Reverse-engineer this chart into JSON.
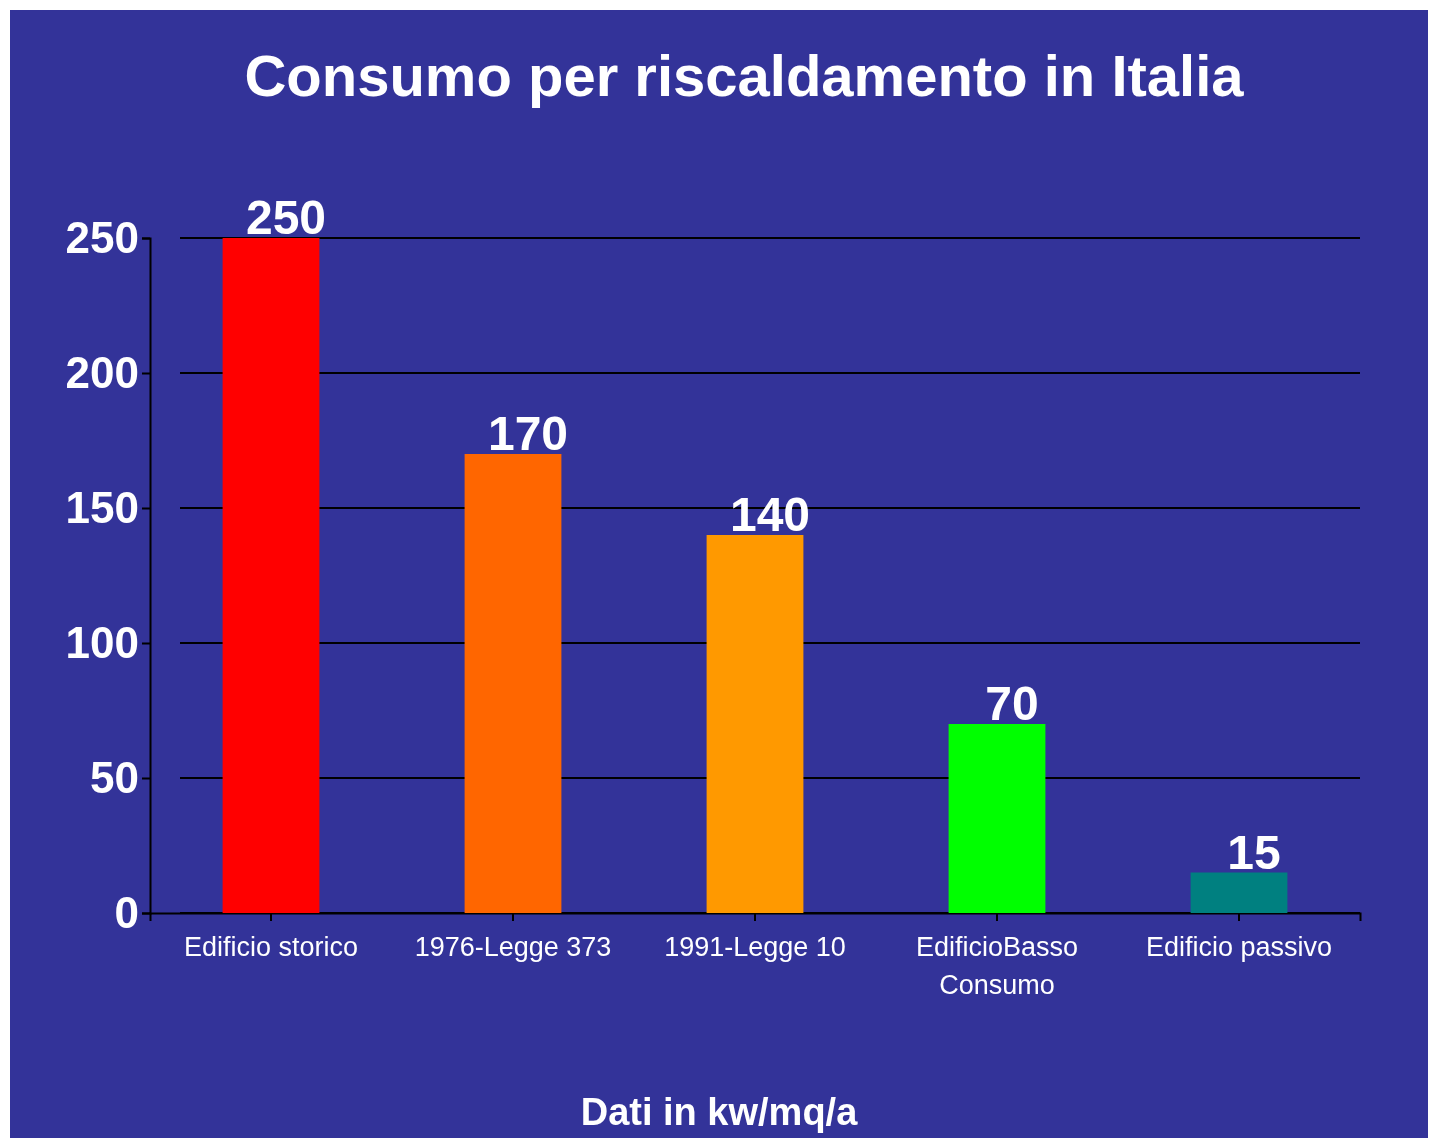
{
  "chart_data": {
    "type": "bar",
    "title": "Consumo per riscaldamento in Italia",
    "xlabel": "Dati in kw/mq/a",
    "categories": [
      "Edificio storico",
      "1976-Legge 373",
      "1991-Legge 10",
      "EdificioBasso Consumo",
      "Edificio passivo"
    ],
    "values": [
      250,
      170,
      140,
      70,
      15
    ],
    "colors": [
      "#ff0000",
      "#ff6600",
      "#ff9900",
      "#00ff00",
      "#008080"
    ],
    "ylim": [
      0,
      250
    ],
    "yticks": [
      0,
      50,
      100,
      150,
      200,
      250
    ],
    "grid": "y",
    "data_labels": true
  }
}
